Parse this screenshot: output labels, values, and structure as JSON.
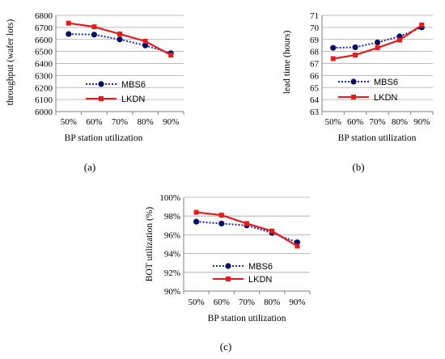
{
  "colors": {
    "mbs6": "#1c2aa8",
    "lkdn": "#e41b1b",
    "grid": "#a6a6a6",
    "axis": "#7f7f7f"
  },
  "chart_data": [
    {
      "type": "line",
      "caption": "(a)",
      "categories": [
        "50%",
        "60%",
        "70%",
        "80%",
        "90%"
      ],
      "xlabel": "BP station utilization",
      "ylabel": "throughput (wafer lots)",
      "ylim": [
        6000,
        6800
      ],
      "yticks": [
        "6000",
        "6100",
        "6200",
        "6300",
        "6400",
        "6500",
        "6600",
        "6700",
        "6800"
      ],
      "grid": true,
      "legend_position": "center-right",
      "series": [
        {
          "name": "MBS6",
          "values": [
            6645,
            6640,
            6600,
            6550,
            6485
          ],
          "style": "dotted",
          "marker": "circle"
        },
        {
          "name": "LKDN",
          "values": [
            6735,
            6705,
            6645,
            6585,
            6470
          ],
          "style": "solid",
          "marker": "square"
        }
      ]
    },
    {
      "type": "line",
      "caption": "(b)",
      "categories": [
        "50%",
        "60%",
        "70%",
        "80%",
        "90%"
      ],
      "xlabel": "BP station utilization",
      "ylabel": "lead time (hours)",
      "ylim": [
        63,
        71
      ],
      "yticks": [
        "63",
        "64",
        "65",
        "66",
        "67",
        "68",
        "69",
        "70",
        "71"
      ],
      "grid": true,
      "legend_position": "center-right",
      "series": [
        {
          "name": "MBS6",
          "values": [
            68.3,
            68.35,
            68.75,
            69.25,
            70.0
          ],
          "style": "dotted",
          "marker": "circle"
        },
        {
          "name": "LKDN",
          "values": [
            67.4,
            67.7,
            68.3,
            68.95,
            70.2
          ],
          "style": "solid",
          "marker": "square"
        }
      ]
    },
    {
      "type": "line",
      "caption": "(c)",
      "categories": [
        "50%",
        "60%",
        "70%",
        "80%",
        "90%"
      ],
      "xlabel": "BP station utilization",
      "ylabel": "BOT utilization (%)",
      "ylim": [
        90,
        100
      ],
      "yticks": [
        "90%",
        "92%",
        "94%",
        "96%",
        "98%",
        "100%"
      ],
      "grid": true,
      "legend_position": "bottom-center",
      "series": [
        {
          "name": "MBS6",
          "values": [
            97.4,
            97.2,
            97.0,
            96.2,
            95.2
          ],
          "style": "dotted",
          "marker": "circle"
        },
        {
          "name": "LKDN",
          "values": [
            98.4,
            98.1,
            97.2,
            96.4,
            94.8
          ],
          "style": "solid",
          "marker": "square"
        }
      ]
    }
  ]
}
